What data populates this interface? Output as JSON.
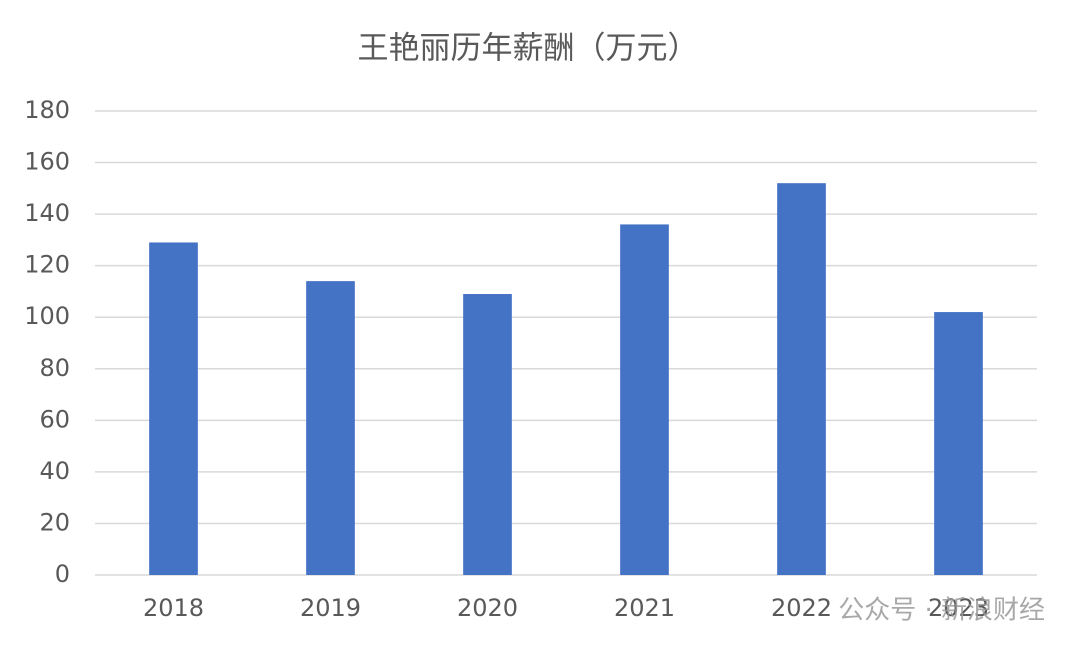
{
  "chart_data": {
    "type": "bar",
    "title": "王艳丽历年薪酬（万元）",
    "categories": [
      "2018",
      "2019",
      "2020",
      "2021",
      "2022",
      "2023"
    ],
    "values": [
      129,
      114,
      109,
      136,
      152,
      102
    ],
    "color": "#4472c4",
    "ylim": [
      0,
      180
    ],
    "yticks": [
      0,
      20,
      40,
      60,
      80,
      100,
      120,
      140,
      160,
      180
    ],
    "grid": true,
    "watermark": "公众号 · 新浪财经"
  }
}
